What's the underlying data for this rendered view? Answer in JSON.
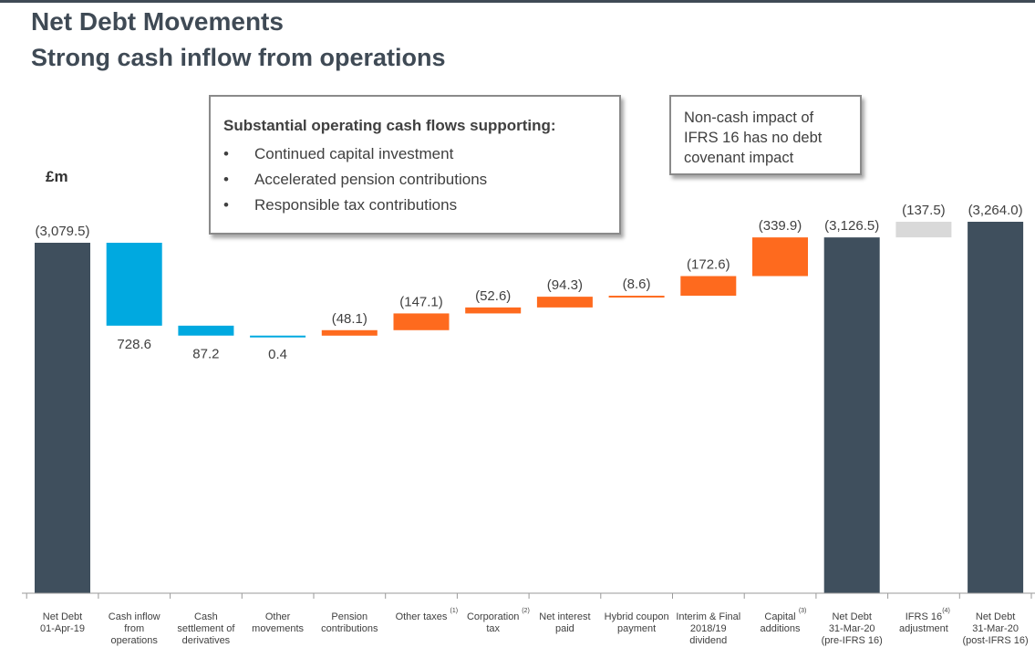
{
  "header": {
    "title": "Net Debt Movements",
    "subtitle": "Strong cash inflow from operations"
  },
  "callouts": {
    "operating": {
      "title": "Substantial operating cash flows supporting:",
      "bullet": "•",
      "items": [
        "Continued capital investment",
        "Accelerated pension contributions",
        "Responsible tax contributions"
      ]
    },
    "ifrs": {
      "lines": [
        "Non-cash impact of",
        "IFRS 16 has no debt",
        "covenant impact"
      ]
    }
  },
  "colors": {
    "total": "#3f4f5d",
    "inflow": "#00a9e0",
    "outflow": "#fe6a1e",
    "adjustment": "#d9d9d9"
  },
  "chart_data": {
    "type": "waterfall",
    "unit_label": "£m",
    "ylim": [
      -3300,
      0
    ],
    "bars": [
      {
        "label": [
          "Net Debt",
          "01-Apr-19"
        ],
        "footnote": "",
        "kind": "total",
        "value": -3079.5,
        "display": "(3,079.5)"
      },
      {
        "label": [
          "Cash inflow",
          "from",
          "operations"
        ],
        "footnote": "",
        "kind": "inflow",
        "value": 728.6,
        "display": "728.6"
      },
      {
        "label": [
          "Cash",
          "settlement of",
          "derivatives"
        ],
        "footnote": "",
        "kind": "inflow",
        "value": 87.2,
        "display": "87.2"
      },
      {
        "label": [
          "Other",
          "movements"
        ],
        "footnote": "",
        "kind": "inflow",
        "value": 0.4,
        "display": "0.4"
      },
      {
        "label": [
          "Pension",
          "contributions"
        ],
        "footnote": "",
        "kind": "outflow",
        "value": -48.1,
        "display": "(48.1)"
      },
      {
        "label": [
          "Other taxes"
        ],
        "footnote": "(1)",
        "kind": "outflow",
        "value": -147.1,
        "display": "(147.1)"
      },
      {
        "label": [
          "Corporation",
          "tax"
        ],
        "footnote": "(2)",
        "kind": "outflow",
        "value": -52.6,
        "display": "(52.6)"
      },
      {
        "label": [
          "Net interest",
          "paid"
        ],
        "footnote": "",
        "kind": "outflow",
        "value": -94.3,
        "display": "(94.3)"
      },
      {
        "label": [
          "Hybrid coupon",
          "payment"
        ],
        "footnote": "",
        "kind": "outflow",
        "value": -8.6,
        "display": "(8.6)"
      },
      {
        "label": [
          "Interim & Final",
          "2018/19",
          "dividend"
        ],
        "footnote": "",
        "kind": "outflow",
        "value": -172.6,
        "display": "(172.6)"
      },
      {
        "label": [
          "Capital",
          "additions"
        ],
        "footnote": "(3)",
        "kind": "outflow",
        "value": -339.9,
        "display": "(339.9)"
      },
      {
        "label": [
          "Net Debt",
          "31-Mar-20",
          "(pre-IFRS 16)"
        ],
        "footnote": "",
        "kind": "total",
        "value": -3126.5,
        "display": "(3,126.5)"
      },
      {
        "label": [
          "IFRS 16",
          "adjustment"
        ],
        "footnote": "(4)",
        "kind": "adjustment",
        "value": -137.5,
        "display": "(137.5)"
      },
      {
        "label": [
          "Net Debt",
          "31-Mar-20",
          "(post-IFRS 16)"
        ],
        "footnote": "",
        "kind": "total",
        "value": -3264.0,
        "display": "(3,264.0)"
      }
    ]
  }
}
